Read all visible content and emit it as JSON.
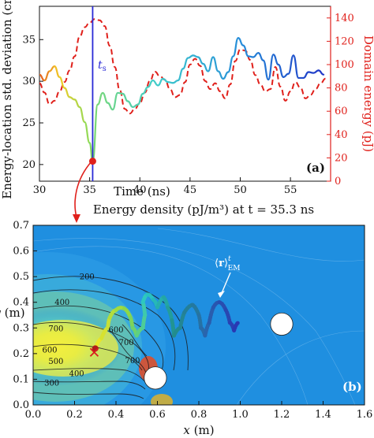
{
  "chart_data": [
    {
      "type": "line",
      "panel_label": "(a)",
      "xlabel": "Time (ns)",
      "ylabel": "Energy-location std. deviation (cm)",
      "ylabel_right": "Domain energy (pJ)",
      "xlim": [
        30,
        59
      ],
      "ylim": [
        18,
        39
      ],
      "ylim_right": [
        0,
        150
      ],
      "xticks": [
        30,
        35,
        40,
        45,
        50,
        55
      ],
      "yticks": [
        20,
        25,
        30,
        35
      ],
      "yticks_right": [
        0,
        20,
        40,
        60,
        80,
        100,
        120,
        140
      ],
      "marker_label": "t_s",
      "marker_x": 35.3,
      "marker_point": [
        35.3,
        20.4
      ],
      "colors": {
        "domain_energy": "#e0201b",
        "marker": "#2a2ad6"
      },
      "series": [
        {
          "axis": "left",
          "style": "solid, colored by time (viridis-like)",
          "x": [
            30,
            30.5,
            31,
            31.5,
            32,
            32.5,
            33,
            33.5,
            34,
            34.5,
            35,
            35.3,
            35.8,
            36.3,
            36.8,
            37.3,
            37.8,
            38.3,
            38.8,
            39.3,
            39.8,
            40.3,
            40.8,
            41.3,
            41.8,
            42.3,
            42.8,
            43.3,
            43.8,
            44.3,
            44.8,
            45.3,
            45.8,
            46.3,
            46.8,
            47.3,
            47.8,
            48.3,
            48.8,
            49.3,
            49.8,
            50.3,
            50.8,
            51.3,
            51.8,
            52.3,
            52.8,
            53.3,
            53.8,
            54.3,
            54.8,
            55.3,
            55.8,
            56.3,
            56.8,
            57.3,
            57.8,
            58.3
          ],
          "y": [
            30.8,
            30.1,
            31.2,
            31.8,
            30.5,
            29.2,
            28.1,
            27.8,
            26.9,
            25.1,
            22.6,
            20.4,
            27.2,
            28.6,
            27.4,
            26.6,
            28.6,
            28.5,
            27.6,
            26.9,
            27.2,
            28.5,
            29.3,
            30.1,
            29.5,
            30.3,
            29.9,
            29.8,
            30.1,
            31.5,
            32.8,
            33.1,
            32.9,
            32.1,
            31.2,
            32.9,
            31.2,
            30.3,
            31.1,
            33.0,
            35.2,
            34.3,
            33.0,
            32.9,
            33.4,
            32.5,
            30.2,
            33.2,
            32.0,
            30.5,
            30.9,
            33.1,
            30.4,
            30.4,
            31.1,
            31.0,
            31.3,
            30.8
          ]
        },
        {
          "axis": "right",
          "style": "dashed",
          "x": [
            30,
            30.5,
            31,
            31.5,
            32,
            32.5,
            33,
            33.5,
            34,
            34.5,
            35,
            35.5,
            36,
            36.5,
            37,
            37.5,
            38,
            38.5,
            39,
            39.5,
            40,
            40.5,
            41,
            41.5,
            42,
            42.5,
            43,
            43.5,
            44,
            44.5,
            45,
            45.5,
            46,
            46.5,
            47,
            47.5,
            48,
            48.5,
            49,
            49.5,
            50,
            50.5,
            51,
            51.5,
            52,
            52.5,
            53,
            53.5,
            54,
            54.5,
            55,
            55.5,
            56,
            56.5,
            57,
            57.5,
            58,
            58.5
          ],
          "y": [
            84,
            76,
            66,
            69,
            77,
            85,
            95,
            107,
            124,
            132,
            136,
            139,
            138,
            133,
            116,
            98,
            78,
            62,
            58,
            62,
            67,
            76,
            86,
            94,
            90,
            87,
            79,
            72,
            74,
            85,
            100,
            105,
            99,
            86,
            79,
            84,
            77,
            71,
            83,
            103,
            113,
            112,
            104,
            91,
            83,
            77,
            79,
            98,
            81,
            69,
            77,
            85,
            80,
            71,
            74,
            79,
            84,
            88
          ]
        }
      ]
    },
    {
      "type": "heatmap",
      "panel_label": "(b)",
      "title": "Energy density (pJ/m³) at t = 35.3 ns",
      "xlabel": "x (m)",
      "ylabel": "y (m)",
      "xlim": [
        0,
        1.6
      ],
      "ylim": [
        0,
        0.7
      ],
      "xticks": [
        "0.0",
        "0.2",
        "0.4",
        "0.6",
        "0.8",
        "1.0",
        "1.2",
        "1.4",
        "1.6"
      ],
      "yticks": [
        "0.0",
        "0.1",
        "0.2",
        "0.3",
        "0.4",
        "0.5",
        "0.6",
        "0.7"
      ],
      "contour_labels": [
        {
          "text": "200",
          "x": 0.26,
          "y": 0.502
        },
        {
          "text": "400",
          "x": 0.14,
          "y": 0.402
        },
        {
          "text": "700",
          "x": 0.11,
          "y": 0.3
        },
        {
          "text": "600",
          "x": 0.4,
          "y": 0.295
        },
        {
          "text": "700",
          "x": 0.45,
          "y": 0.245
        },
        {
          "text": "500",
          "x": 0.11,
          "y": 0.172
        },
        {
          "text": "600",
          "x": 0.08,
          "y": 0.217
        },
        {
          "text": "400",
          "x": 0.21,
          "y": 0.125
        },
        {
          "text": "300",
          "x": 0.09,
          "y": 0.088
        },
        {
          "text": "700",
          "x": 0.48,
          "y": 0.175
        }
      ],
      "trajectory_label": "⟨r⟩ᵗ_EM",
      "cross_marker": [
        0.295,
        0.205
      ],
      "obstacles": [
        {
          "cx": 0.59,
          "cy": 0.105,
          "r": 0.072
        },
        {
          "cx": 1.2,
          "cy": 0.315,
          "r": 0.072
        }
      ],
      "trajectory": [
        [
          0.3,
          0.22
        ],
        [
          0.33,
          0.26
        ],
        [
          0.36,
          0.3
        ],
        [
          0.37,
          0.34
        ],
        [
          0.4,
          0.37
        ],
        [
          0.44,
          0.375
        ],
        [
          0.47,
          0.34
        ],
        [
          0.48,
          0.3
        ],
        [
          0.5,
          0.27
        ],
        [
          0.53,
          0.3
        ],
        [
          0.54,
          0.35
        ],
        [
          0.53,
          0.4
        ],
        [
          0.55,
          0.43
        ],
        [
          0.58,
          0.41
        ],
        [
          0.6,
          0.38
        ],
        [
          0.63,
          0.42
        ],
        [
          0.65,
          0.38
        ],
        [
          0.67,
          0.33
        ],
        [
          0.68,
          0.27
        ],
        [
          0.71,
          0.3
        ],
        [
          0.73,
          0.36
        ],
        [
          0.77,
          0.39
        ],
        [
          0.8,
          0.35
        ],
        [
          0.81,
          0.3
        ],
        [
          0.83,
          0.27
        ],
        [
          0.85,
          0.32
        ],
        [
          0.87,
          0.38
        ],
        [
          0.9,
          0.4
        ],
        [
          0.93,
          0.37
        ],
        [
          0.95,
          0.32
        ],
        [
          0.97,
          0.29
        ],
        [
          0.99,
          0.32
        ]
      ]
    }
  ]
}
